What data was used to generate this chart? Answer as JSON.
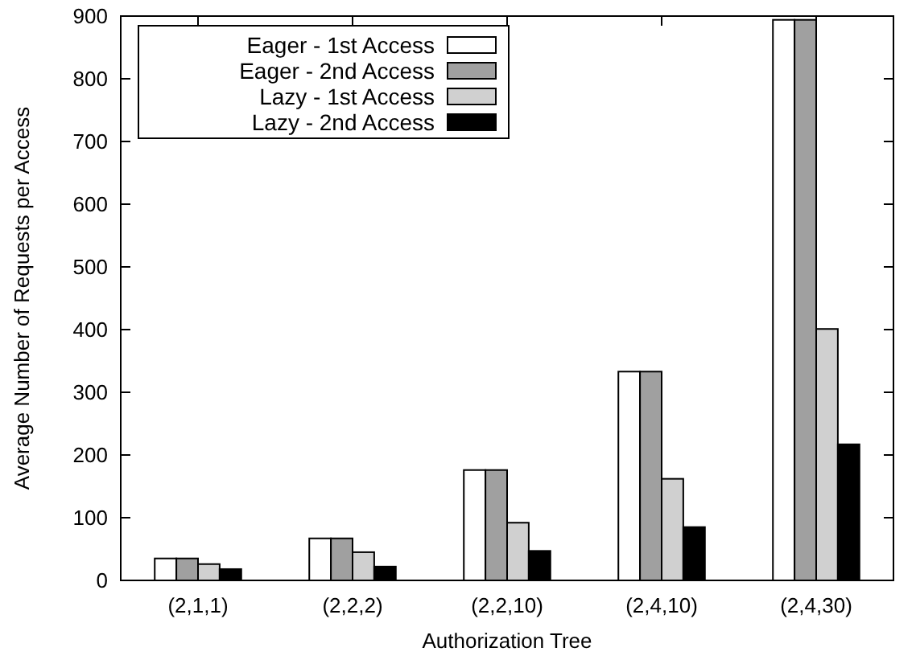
{
  "chart_data": {
    "type": "bar",
    "xlabel": "Authorization Tree",
    "ylabel": "Average Number of Requests per Access",
    "categories": [
      "(2,1,1)",
      "(2,2,2)",
      "(2,2,10)",
      "(2,4,10)",
      "(2,4,30)"
    ],
    "series": [
      {
        "name": "Eager - 1st Access",
        "color": "#ffffff",
        "values": [
          35,
          67,
          176,
          333,
          894
        ]
      },
      {
        "name": "Eager - 2nd Access",
        "color": "#a0a0a0",
        "values": [
          35,
          67,
          176,
          333,
          894
        ]
      },
      {
        "name": "Lazy - 1st Access",
        "color": "#d0d0d0",
        "values": [
          26,
          45,
          92,
          162,
          401
        ]
      },
      {
        "name": "Lazy - 2nd Access",
        "color": "#000000",
        "values": [
          18,
          22,
          47,
          85,
          217
        ]
      }
    ],
    "ylim": [
      0,
      900
    ],
    "yticks": [
      0,
      100,
      200,
      300,
      400,
      500,
      600,
      700,
      800,
      900
    ],
    "legend": "top left",
    "grid": false
  }
}
